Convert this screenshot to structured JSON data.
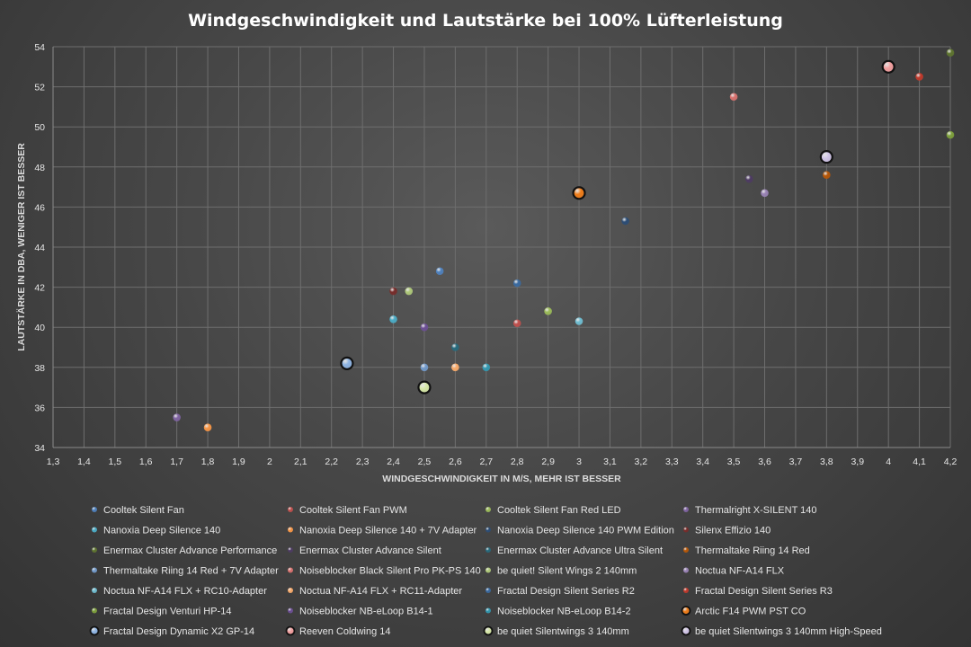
{
  "chart_data": {
    "type": "scatter",
    "title": "Windgeschwindigkeit und Lautstärke bei 100% Lüfterleistung",
    "xlabel": "WINDGESCHWINDIGKEIT IN M/S, MEHR IST BESSER",
    "ylabel": "LAUTSTÄRKE IN DBA, WENIGER IST BESSER",
    "xlim": [
      1.3,
      4.2
    ],
    "ylim": [
      34,
      54
    ],
    "x_ticks": [
      "1,3",
      "1,4",
      "1,5",
      "1,6",
      "1,7",
      "1,8",
      "1,9",
      "2",
      "2,1",
      "2,2",
      "2,3",
      "2,4",
      "2,5",
      "2,6",
      "2,7",
      "2,8",
      "2,9",
      "3",
      "3,1",
      "3,2",
      "3,3",
      "3,4",
      "3,5",
      "3,6",
      "3,7",
      "3,8",
      "3,9",
      "4",
      "4,1",
      "4,2"
    ],
    "y_ticks": [
      "34",
      "36",
      "38",
      "40",
      "42",
      "44",
      "46",
      "48",
      "50",
      "52",
      "54"
    ],
    "grid": true,
    "legend_position": "bottom",
    "series": [
      {
        "name": "Cooltek Silent Fan",
        "color": "#4f81bd",
        "x": [
          2.55
        ],
        "y": [
          42.8
        ]
      },
      {
        "name": "Cooltek Silent Fan PWM",
        "color": "#c0504d",
        "x": [
          2.8
        ],
        "y": [
          40.2
        ]
      },
      {
        "name": "Cooltek Silent Fan Red LED",
        "color": "#9bbb59",
        "x": [
          2.9
        ],
        "y": [
          40.8
        ]
      },
      {
        "name": "Thermalright X-SILENT 140",
        "color": "#8064a2",
        "x": [
          1.7
        ],
        "y": [
          35.5
        ]
      },
      {
        "name": "Nanoxia Deep Silence 140",
        "color": "#4bacc6",
        "x": [
          2.4
        ],
        "y": [
          40.4
        ]
      },
      {
        "name": "Nanoxia Deep Silence 140 + 7V Adapter",
        "color": "#f79646",
        "x": [
          1.8
        ],
        "y": [
          35.0
        ]
      },
      {
        "name": "Nanoxia Deep Silence 140 PWM Edition",
        "color": "#2c4d75",
        "x": [
          3.15
        ],
        "y": [
          45.3
        ]
      },
      {
        "name": "Silenx Effizio 140",
        "color": "#772c2a",
        "x": [
          2.4
        ],
        "y": [
          41.8
        ]
      },
      {
        "name": "Enermax Cluster Advance Performance",
        "color": "#5f7530",
        "x": [
          4.2
        ],
        "y": [
          53.7
        ]
      },
      {
        "name": "Enermax Cluster Advance Silent",
        "color": "#4d3b62",
        "x": [
          3.55
        ],
        "y": [
          47.4
        ]
      },
      {
        "name": "Enermax Cluster Advance Ultra Silent",
        "color": "#276a7c",
        "x": [
          2.6
        ],
        "y": [
          39.0
        ]
      },
      {
        "name": "Thermaltake Riing 14 Red",
        "color": "#b65708",
        "x": [
          3.8
        ],
        "y": [
          47.6
        ]
      },
      {
        "name": "Thermaltake Riing 14 Red + 7V Adapter",
        "color": "#729aca",
        "x": [
          2.5
        ],
        "y": [
          38.0
        ]
      },
      {
        "name": "Noiseblocker Black Silent Pro PK-PS 140",
        "color": "#d9726f",
        "x": [
          3.5
        ],
        "y": [
          51.5
        ]
      },
      {
        "name": "be quiet! Silent Wings 2 140mm",
        "color": "#afc97a",
        "x": [
          2.45
        ],
        "y": [
          41.8
        ]
      },
      {
        "name": "Noctua NF-A14 FLX",
        "color": "#9983b5",
        "x": [
          3.6
        ],
        "y": [
          46.7
        ]
      },
      {
        "name": "Noctua NF-A14 FLX + RC10-Adapter",
        "color": "#6fbdd1",
        "x": [
          3.0
        ],
        "y": [
          40.3
        ]
      },
      {
        "name": "Noctua NF-A14 FLX + RC11-Adapter",
        "color": "#f9ab6b",
        "x": [
          2.6
        ],
        "y": [
          38.0
        ]
      },
      {
        "name": "Fractal Design Silent Series R2",
        "color": "#3a6aa0",
        "x": [
          2.8
        ],
        "y": [
          42.2
        ]
      },
      {
        "name": "Fractal Design Silent Series R3",
        "color": "#c0392b",
        "x": [
          4.1
        ],
        "y": [
          52.5
        ]
      },
      {
        "name": "Fractal Design Venturi  HP-14",
        "color": "#7ea03c",
        "x": [
          4.2
        ],
        "y": [
          49.6
        ]
      },
      {
        "name": "Noiseblocker NB-eLoop B14-1",
        "color": "#6c4f94",
        "x": [
          2.5
        ],
        "y": [
          40.0
        ]
      },
      {
        "name": "Noiseblocker NB-eLoop B14-2",
        "color": "#3398b0",
        "x": [
          2.7
        ],
        "y": [
          38.0
        ]
      },
      {
        "name": "Arctic F14 PWM PST CO",
        "color": "#ef7d1a",
        "x": [
          3.0
        ],
        "y": [
          46.7
        ]
      },
      {
        "name": "Fractal Design Dynamic X2 GP-14",
        "color": "#8eb4e3",
        "x": [
          2.25
        ],
        "y": [
          38.2
        ]
      },
      {
        "name": "Reeven Coldwing 14",
        "color": "#f2a0a0",
        "x": [
          4.0
        ],
        "y": [
          53.0
        ]
      },
      {
        "name": "be quiet Silentwings 3 140mm",
        "color": "#d7e8a8",
        "x": [
          2.5
        ],
        "y": [
          37.0
        ]
      },
      {
        "name": "be quiet Silentwings 3 140mm High-Speed",
        "color": "#d0c4e6",
        "x": [
          3.8
        ],
        "y": [
          48.5
        ]
      }
    ],
    "highlighted_series": [
      "Arctic F14 PWM PST CO",
      "Fractal Design Dynamic X2 GP-14",
      "Reeven Coldwing 14",
      "be quiet Silentwings 3 140mm",
      "be quiet Silentwings 3 140mm High-Speed"
    ]
  }
}
